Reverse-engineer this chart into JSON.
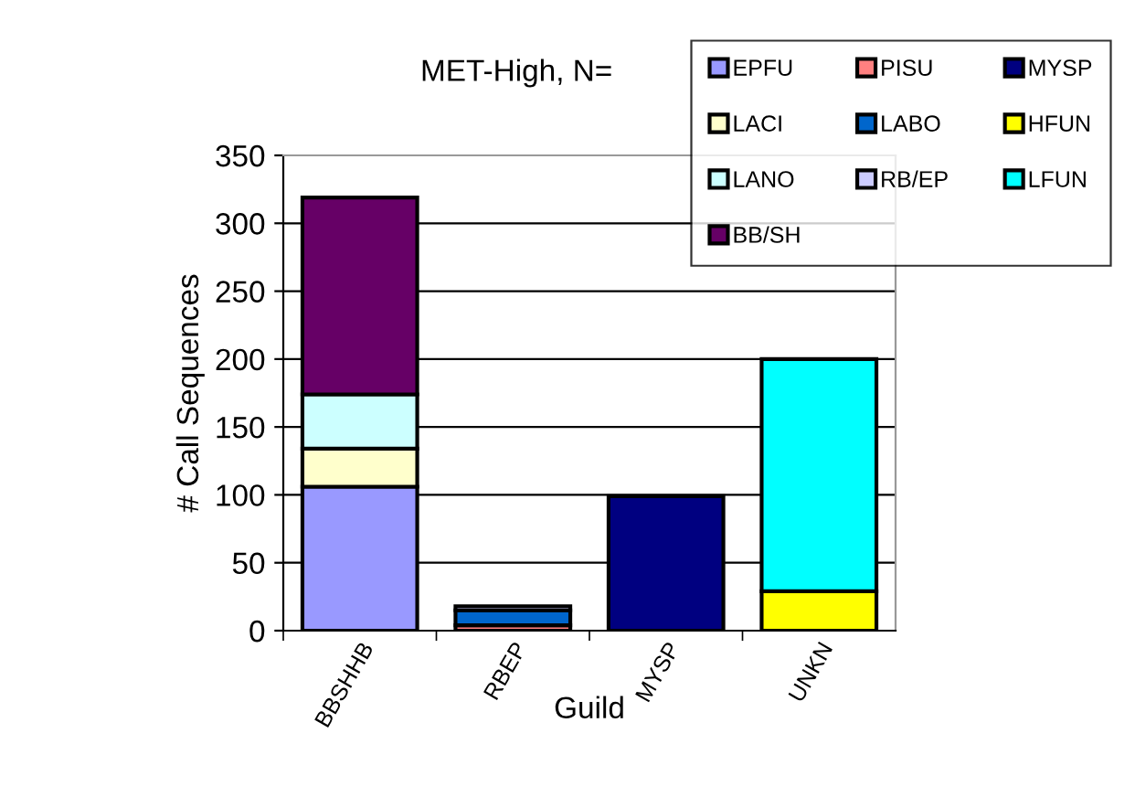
{
  "chart_data": {
    "type": "bar",
    "stacked": true,
    "title": "MET-High, N=",
    "xlabel": "Guild",
    "ylabel": "# Call Sequences",
    "categories": [
      "BBSHHB",
      "RBEP",
      "MYSP",
      "UNKN"
    ],
    "ylim": [
      0,
      350
    ],
    "yticks": [
      0,
      50,
      100,
      150,
      200,
      250,
      300,
      350
    ],
    "grid": "y",
    "legend": "top right",
    "series": [
      {
        "name": "EPFU",
        "color": "#9999ff",
        "values": [
          106,
          null,
          null,
          null
        ]
      },
      {
        "name": "LACI",
        "color": "#ffffcc",
        "values": [
          28,
          null,
          null,
          null
        ]
      },
      {
        "name": "LANO",
        "color": "#ccffff",
        "values": [
          40,
          null,
          null,
          null
        ]
      },
      {
        "name": "BB/SH",
        "color": "#660066",
        "values": [
          145,
          null,
          null,
          null
        ]
      },
      {
        "name": "PISU",
        "color": "#ff8080",
        "values": [
          null,
          4,
          null,
          null
        ]
      },
      {
        "name": "LABO",
        "color": "#0066cc",
        "values": [
          null,
          11,
          null,
          null
        ]
      },
      {
        "name": "RB/EP",
        "color": "#ccccff",
        "values": [
          null,
          3,
          null,
          null
        ]
      },
      {
        "name": "MYSP",
        "color": "#000080",
        "values": [
          null,
          null,
          99,
          null
        ]
      },
      {
        "name": "HFUN",
        "color": "#ffff00",
        "values": [
          null,
          null,
          null,
          29
        ]
      },
      {
        "name": "LFUN",
        "color": "#00ffff",
        "values": [
          null,
          null,
          null,
          171
        ]
      }
    ]
  }
}
